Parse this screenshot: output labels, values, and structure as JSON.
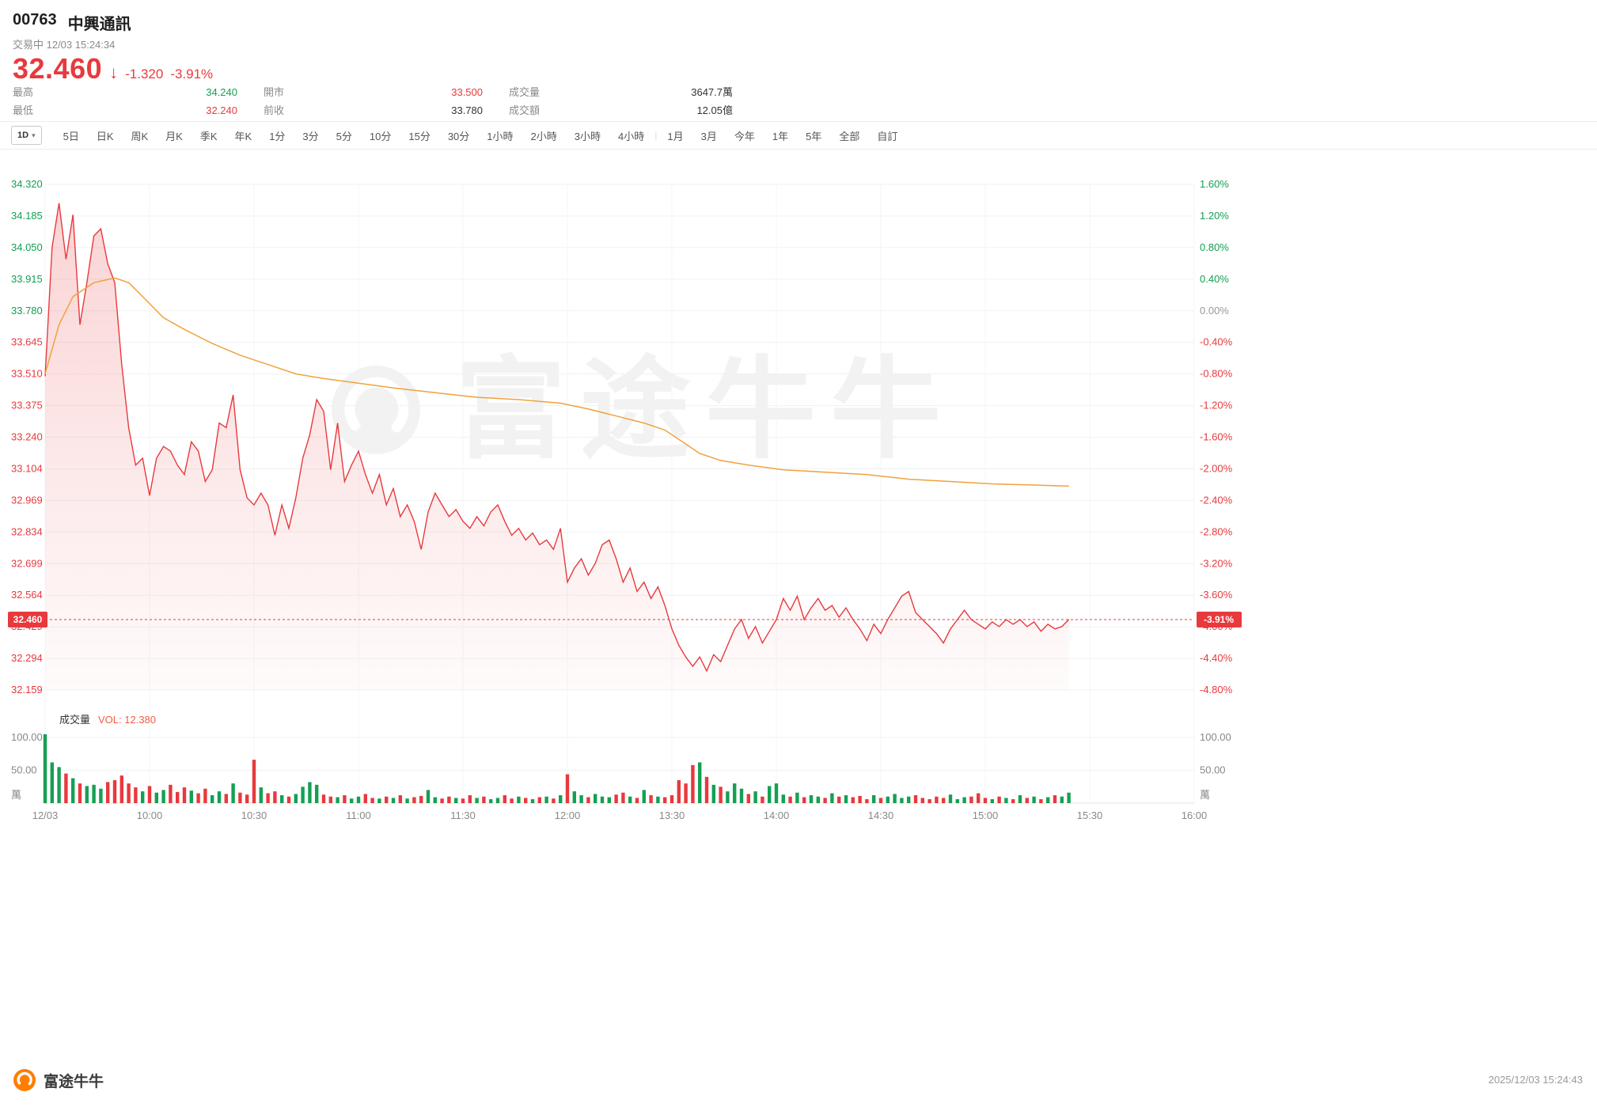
{
  "header": {
    "code": "00763",
    "name": "中興通訊",
    "status": "交易中 12/03 15:24:34",
    "price": "32.460",
    "arrow": "↓",
    "change": "-1.320",
    "change_percent": "-3.91%",
    "stats": [
      {
        "label": "最高",
        "value": "34.240"
      },
      {
        "label": "最低",
        "value": "32.240"
      },
      {
        "label": "開市",
        "value": "33.500"
      },
      {
        "label": "前收",
        "value": "33.780"
      },
      {
        "label": "成交量",
        "value": "3647.7萬"
      },
      {
        "label": "成交額",
        "value": "12.05億"
      }
    ]
  },
  "period_bar": {
    "selected": "1D",
    "caret": "▾",
    "divider_glyph": "|",
    "divider_after": "4小時",
    "tabs": [
      "5日",
      "日K",
      "周K",
      "月K",
      "季K",
      "年K",
      "1分",
      "3分",
      "5分",
      "10分",
      "15分",
      "30分",
      "1小時",
      "2小時",
      "3小時",
      "4小時",
      "1月",
      "3月",
      "今年",
      "1年",
      "5年",
      "全部",
      "自訂"
    ]
  },
  "volume_pane": {
    "title": "成交量",
    "vol_label": "VOL: 12.380",
    "y_labels": [
      "100.00",
      "50.00"
    ],
    "unit": "萬"
  },
  "watermark": {
    "text": "富途牛牛"
  },
  "footer": {
    "brand": "富途牛牛",
    "timestamp": "2025/12/03 15:24:43"
  },
  "colors": {
    "up": "#14a053",
    "down": "#e8393d",
    "price_line": "#e8393d",
    "avg_line": "#f0a23c",
    "tag_bg": "#e8393d",
    "vol_text": "#f25c45",
    "muted": "#999999",
    "text": "#1e1e1e"
  },
  "chart_data": {
    "type": "line",
    "title": "00763 中興通訊 1D intraday",
    "session_total_minutes": 330,
    "minute_step": 2,
    "prev_close": 33.78,
    "open": 33.5,
    "high": 34.24,
    "low": 32.24,
    "price_axis_max": 34.32,
    "price_axis_min": 32.159,
    "current": {
      "price": 32.46,
      "price_label": "32.460",
      "percent_label": "-3.91%"
    },
    "x_ticks": [
      {
        "label": "12/03",
        "minute": 0
      },
      {
        "label": "10:00",
        "minute": 30
      },
      {
        "label": "10:30",
        "minute": 60
      },
      {
        "label": "11:00",
        "minute": 90
      },
      {
        "label": "11:30",
        "minute": 120
      },
      {
        "label": "12:00",
        "minute": 150
      },
      {
        "label": "13:30",
        "minute": 180
      },
      {
        "label": "14:00",
        "minute": 210
      },
      {
        "label": "14:30",
        "minute": 240
      },
      {
        "label": "15:00",
        "minute": 270
      },
      {
        "label": "15:30",
        "minute": 300
      },
      {
        "label": "16:00",
        "minute": 330
      }
    ],
    "y_price_ticks": [
      {
        "t": "34.320",
        "c": "g"
      },
      {
        "t": "34.185",
        "c": "g"
      },
      {
        "t": "34.050",
        "c": "g"
      },
      {
        "t": "33.915",
        "c": "g"
      },
      {
        "t": "33.780",
        "c": "g"
      },
      {
        "t": "33.645",
        "c": "r"
      },
      {
        "t": "33.510",
        "c": "r"
      },
      {
        "t": "33.375",
        "c": "r"
      },
      {
        "t": "33.240",
        "c": "r"
      },
      {
        "t": "33.104",
        "c": "r"
      },
      {
        "t": "32.969",
        "c": "r"
      },
      {
        "t": "32.834",
        "c": "r"
      },
      {
        "t": "32.699",
        "c": "r"
      },
      {
        "t": "32.564",
        "c": "r"
      },
      {
        "t": "32.429",
        "c": "r"
      },
      {
        "t": "32.294",
        "c": "r"
      },
      {
        "t": "32.159",
        "c": "r"
      }
    ],
    "y_percent_ticks": [
      {
        "t": "1.60%",
        "c": "g"
      },
      {
        "t": "1.20%",
        "c": "g"
      },
      {
        "t": "0.80%",
        "c": "g"
      },
      {
        "t": "0.40%",
        "c": "g"
      },
      {
        "t": "0.00%",
        "c": "n"
      },
      {
        "t": "-0.40%",
        "c": "r"
      },
      {
        "t": "-0.80%",
        "c": "r"
      },
      {
        "t": "-1.20%",
        "c": "r"
      },
      {
        "t": "-1.60%",
        "c": "r"
      },
      {
        "t": "-2.00%",
        "c": "r"
      },
      {
        "t": "-2.40%",
        "c": "r"
      },
      {
        "t": "-2.80%",
        "c": "r"
      },
      {
        "t": "-3.20%",
        "c": "r"
      },
      {
        "t": "-3.60%",
        "c": "r"
      },
      {
        "t": "-4.00%",
        "c": "r"
      },
      {
        "t": "-4.40%",
        "c": "r"
      },
      {
        "t": "-4.80%",
        "c": "r"
      }
    ],
    "price_values": [
      33.5,
      34.05,
      34.24,
      34.0,
      34.19,
      33.72,
      33.9,
      34.1,
      34.13,
      33.98,
      33.9,
      33.55,
      33.28,
      33.12,
      33.15,
      32.99,
      33.15,
      33.2,
      33.18,
      33.12,
      33.08,
      33.22,
      33.18,
      33.05,
      33.1,
      33.3,
      33.28,
      33.42,
      33.1,
      32.98,
      32.95,
      33.0,
      32.95,
      32.82,
      32.95,
      32.85,
      32.98,
      33.15,
      33.25,
      33.4,
      33.35,
      33.1,
      33.3,
      33.05,
      33.12,
      33.18,
      33.08,
      33.0,
      33.08,
      32.95,
      33.02,
      32.9,
      32.95,
      32.88,
      32.76,
      32.92,
      33.0,
      32.95,
      32.9,
      32.93,
      32.88,
      32.85,
      32.9,
      32.86,
      32.92,
      32.95,
      32.88,
      32.82,
      32.85,
      32.8,
      32.83,
      32.78,
      32.8,
      32.76,
      32.85,
      32.62,
      32.68,
      32.72,
      32.65,
      32.7,
      32.78,
      32.8,
      32.72,
      32.62,
      32.68,
      32.58,
      32.62,
      32.55,
      32.6,
      32.52,
      32.42,
      32.35,
      32.3,
      32.26,
      32.3,
      32.24,
      32.31,
      32.28,
      32.35,
      32.42,
      32.46,
      32.38,
      32.43,
      32.36,
      32.41,
      32.46,
      32.55,
      32.5,
      32.56,
      32.46,
      32.51,
      32.55,
      32.5,
      32.52,
      32.47,
      32.51,
      32.46,
      32.42,
      32.37,
      32.44,
      32.4,
      32.46,
      32.51,
      32.56,
      32.58,
      32.49,
      32.46,
      32.43,
      32.4,
      32.36,
      32.42,
      32.46,
      32.5,
      32.46,
      32.44,
      32.42,
      32.45,
      32.43,
      32.46,
      32.44,
      32.46,
      32.43,
      32.45,
      32.41,
      32.44,
      32.42,
      32.43,
      32.46
    ],
    "avg_points": [
      [
        0,
        33.51
      ],
      [
        4,
        33.72
      ],
      [
        8,
        33.84
      ],
      [
        14,
        33.9
      ],
      [
        20,
        33.92
      ],
      [
        24,
        33.9
      ],
      [
        28,
        33.84
      ],
      [
        34,
        33.75
      ],
      [
        40,
        33.7
      ],
      [
        48,
        33.64
      ],
      [
        56,
        33.59
      ],
      [
        64,
        33.55
      ],
      [
        72,
        33.51
      ],
      [
        80,
        33.49
      ],
      [
        90,
        33.47
      ],
      [
        100,
        33.45
      ],
      [
        112,
        33.43
      ],
      [
        124,
        33.41
      ],
      [
        136,
        33.4
      ],
      [
        148,
        33.385
      ],
      [
        156,
        33.36
      ],
      [
        164,
        33.33
      ],
      [
        172,
        33.3
      ],
      [
        178,
        33.27
      ],
      [
        183,
        33.22
      ],
      [
        188,
        33.17
      ],
      [
        194,
        33.14
      ],
      [
        202,
        33.12
      ],
      [
        212,
        33.1
      ],
      [
        224,
        33.09
      ],
      [
        236,
        33.08
      ],
      [
        248,
        33.06
      ],
      [
        260,
        33.05
      ],
      [
        272,
        33.04
      ],
      [
        284,
        33.035
      ],
      [
        294,
        33.03
      ]
    ],
    "volume_values": [
      105,
      62,
      55,
      45,
      38,
      30,
      26,
      28,
      22,
      32,
      35,
      42,
      30,
      24,
      18,
      26,
      16,
      20,
      28,
      17,
      24,
      19,
      15,
      22,
      12,
      18,
      14,
      30,
      16,
      13,
      66,
      24,
      15,
      18,
      12,
      10,
      14,
      25,
      32,
      28,
      13,
      10,
      9,
      12,
      7,
      10,
      14,
      8,
      7,
      10,
      8,
      12,
      7,
      9,
      11,
      20,
      9,
      7,
      10,
      8,
      7,
      12,
      8,
      10,
      6,
      8,
      12,
      7,
      10,
      8,
      6,
      9,
      10,
      7,
      12,
      44,
      18,
      12,
      9,
      14,
      10,
      9,
      13,
      16,
      10,
      8,
      20,
      12,
      10,
      9,
      12,
      35,
      30,
      58,
      62,
      40,
      28,
      25,
      18,
      30,
      22,
      14,
      18,
      10,
      26,
      30,
      13,
      10,
      16,
      9,
      12,
      10,
      8,
      15,
      10,
      12,
      9,
      11,
      6,
      12,
      8,
      10,
      14,
      8,
      10,
      12,
      8,
      6,
      10,
      8,
      13,
      6,
      9,
      10,
      15,
      8,
      6,
      10,
      8,
      6,
      12,
      8,
      10,
      6,
      9,
      12,
      10,
      16
    ]
  }
}
